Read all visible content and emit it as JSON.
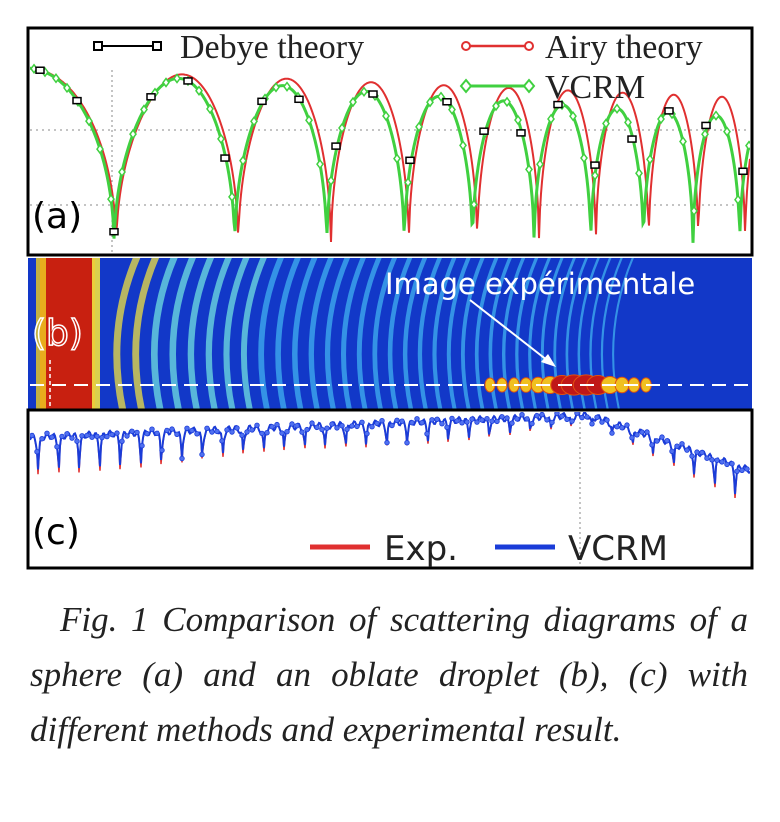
{
  "panels": [
    {
      "label": "(a)",
      "legend": [
        "Debye theory",
        "Airy theory",
        "VCRM"
      ]
    },
    {
      "label": "(b)",
      "annotation": "Image expérimentale"
    },
    {
      "label": "(c)",
      "legend": [
        "Exp.",
        "VCRM"
      ]
    }
  ],
  "caption": "Fig. 1 Comparison of scattering diagrams of a sphere (a) and an oblate droplet (b), (c) with different methods and experimental result."
}
